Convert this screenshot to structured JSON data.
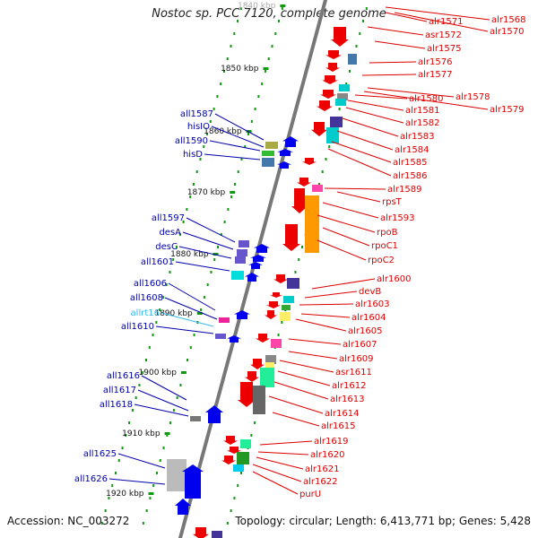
{
  "title": "Nostoc sp. PCC 7120, complete genome",
  "accession": "Accession: NC_003272",
  "summary": "Topology: circular; Length: 6,413,771 bp; Genes: 5,428",
  "colors": {
    "forward_label": "#dd0000",
    "reverse_label": "#0000aa",
    "rna_label": "#33bbee",
    "backbone": "#777777",
    "tick": "#119911"
  },
  "ticks": [
    {
      "label": "1840 kbp",
      "faded": true
    },
    {
      "label": "1850 kbp"
    },
    {
      "label": "1860 kbp"
    },
    {
      "label": "1870 kbp"
    },
    {
      "label": "1880 kbp"
    },
    {
      "label": "1890 kbp"
    },
    {
      "label": "1900 kbp"
    },
    {
      "label": "1910 kbp"
    },
    {
      "label": "1920 kbp"
    }
  ],
  "forward_genes": [
    "alr1568",
    "alr1570",
    "alr1571",
    "asr1572",
    "alr1575",
    "alr1576",
    "alr1577",
    "alr1578",
    "alr1579",
    "alr1580",
    "alr1581",
    "alr1582",
    "alr1583",
    "alr1584",
    "alr1585",
    "alr1586",
    "alr1589",
    "rpsT",
    "alr1593",
    "rpoB",
    "rpoC1",
    "rpoC2",
    "alr1600",
    "devB",
    "alr1603",
    "alr1604",
    "alr1605",
    "alr1607",
    "alr1609",
    "asr1611",
    "alr1612",
    "alr1613",
    "alr1614",
    "alr1615",
    "alr1619",
    "alr1620",
    "alr1621",
    "alr1622",
    "purU"
  ],
  "reverse_genes": [
    "all1587",
    "hisIO",
    "all1590",
    "hisD",
    "all1597",
    "desA",
    "desC",
    "all1601",
    "all1606",
    "all1608",
    "allrt16",
    "all1610",
    "all1616",
    "all1617",
    "all1618",
    "all1625",
    "all1626"
  ],
  "rna_genes": [
    "allrt16"
  ]
}
